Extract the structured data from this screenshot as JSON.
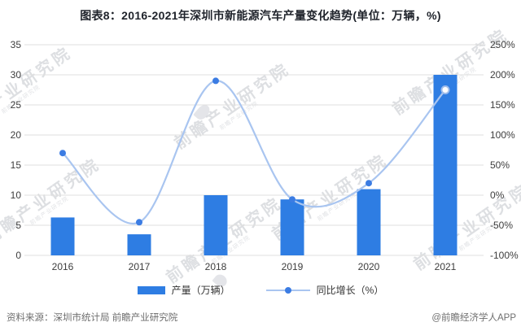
{
  "title": "图表8：2016-2021年深圳市新能源汽车产量变化趋势(单位：万辆，%)",
  "chart_data": {
    "type": "bar",
    "subtype": "combo-bar-line-dual-axis",
    "categories": [
      "2016",
      "2017",
      "2018",
      "2019",
      "2020",
      "2021"
    ],
    "series": [
      {
        "name": "产量（万辆）",
        "type": "bar",
        "axis": "left",
        "values": [
          6.3,
          3.5,
          10,
          9.3,
          11,
          30
        ]
      },
      {
        "name": "同比增长（%）",
        "type": "line",
        "axis": "right",
        "values": [
          70,
          -45,
          190,
          -7,
          20,
          175
        ]
      }
    ],
    "title": "图表8：2016-2021年深圳市新能源汽车产量变化趋势(单位：万辆，%)",
    "xlabel": "",
    "ylabel_left": "万辆",
    "ylabel_right": "%",
    "left_axis": {
      "min": 0,
      "max": 35,
      "ticks": [
        35,
        30,
        25,
        20,
        15,
        10,
        5,
        0
      ]
    },
    "right_axis": {
      "min": -100,
      "max": 250,
      "tick_values": [
        250,
        200,
        150,
        100,
        50,
        0,
        -50,
        -100
      ],
      "tick_labels": [
        "250%",
        "200%",
        "150%",
        "100%",
        "50%",
        "0%",
        "-50%",
        "-100%"
      ]
    },
    "grid": true,
    "legend_position": "bottom",
    "line_marker_last_point": "open-circle"
  },
  "legend": {
    "bar_label": "产量（万辆）",
    "line_label": "同比增长（%）"
  },
  "footer": {
    "source": "资料来源：深圳市统计局 前瞻产业研究院",
    "credit": "@前瞻经济学人APP"
  },
  "watermark": {
    "text": "前瞻产业研究院"
  },
  "colors": {
    "bar": "#2E7DE3",
    "line": "#A9C5F0",
    "marker": "#3B7CE3",
    "marker_open_ring": "#9EBCEA",
    "grid": "#DFDFDF",
    "title_text": "#20242c",
    "axis_text": "#3d3d3d",
    "footer_text": "#6e6e6e"
  }
}
